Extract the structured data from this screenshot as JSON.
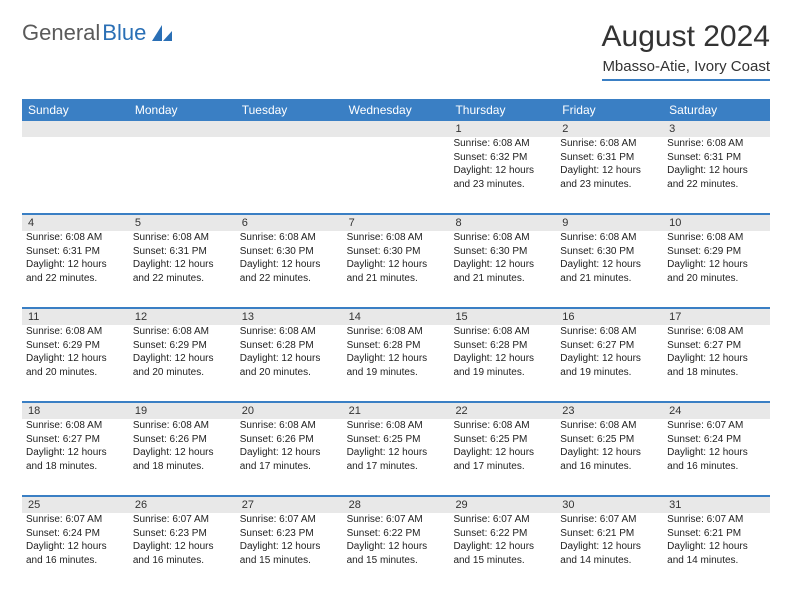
{
  "logo": {
    "text1": "General",
    "text2": "Blue"
  },
  "header": {
    "title": "August 2024",
    "subtitle": "Mbasso-Atie, Ivory Coast"
  },
  "colors": {
    "header_bar": "#3a7fc4",
    "number_strip": "#e8e8e8",
    "text": "#222222",
    "title_text": "#333333",
    "logo_gray": "#5a5a5a",
    "logo_blue": "#2a6fb5",
    "background": "#ffffff"
  },
  "typography": {
    "title_fontsize": 30,
    "subtitle_fontsize": 15,
    "dayheader_fontsize": 12,
    "daynum_fontsize": 11,
    "body_fontsize": 10
  },
  "day_names": [
    "Sunday",
    "Monday",
    "Tuesday",
    "Wednesday",
    "Thursday",
    "Friday",
    "Saturday"
  ],
  "weeks": [
    {
      "numbers": [
        "",
        "",
        "",
        "",
        "1",
        "2",
        "3"
      ],
      "cells": [
        null,
        null,
        null,
        null,
        {
          "sunrise": "Sunrise: 6:08 AM",
          "sunset": "Sunset: 6:32 PM",
          "daylight": "Daylight: 12 hours and 23 minutes."
        },
        {
          "sunrise": "Sunrise: 6:08 AM",
          "sunset": "Sunset: 6:31 PM",
          "daylight": "Daylight: 12 hours and 23 minutes."
        },
        {
          "sunrise": "Sunrise: 6:08 AM",
          "sunset": "Sunset: 6:31 PM",
          "daylight": "Daylight: 12 hours and 22 minutes."
        }
      ]
    },
    {
      "numbers": [
        "4",
        "5",
        "6",
        "7",
        "8",
        "9",
        "10"
      ],
      "cells": [
        {
          "sunrise": "Sunrise: 6:08 AM",
          "sunset": "Sunset: 6:31 PM",
          "daylight": "Daylight: 12 hours and 22 minutes."
        },
        {
          "sunrise": "Sunrise: 6:08 AM",
          "sunset": "Sunset: 6:31 PM",
          "daylight": "Daylight: 12 hours and 22 minutes."
        },
        {
          "sunrise": "Sunrise: 6:08 AM",
          "sunset": "Sunset: 6:30 PM",
          "daylight": "Daylight: 12 hours and 22 minutes."
        },
        {
          "sunrise": "Sunrise: 6:08 AM",
          "sunset": "Sunset: 6:30 PM",
          "daylight": "Daylight: 12 hours and 21 minutes."
        },
        {
          "sunrise": "Sunrise: 6:08 AM",
          "sunset": "Sunset: 6:30 PM",
          "daylight": "Daylight: 12 hours and 21 minutes."
        },
        {
          "sunrise": "Sunrise: 6:08 AM",
          "sunset": "Sunset: 6:30 PM",
          "daylight": "Daylight: 12 hours and 21 minutes."
        },
        {
          "sunrise": "Sunrise: 6:08 AM",
          "sunset": "Sunset: 6:29 PM",
          "daylight": "Daylight: 12 hours and 20 minutes."
        }
      ]
    },
    {
      "numbers": [
        "11",
        "12",
        "13",
        "14",
        "15",
        "16",
        "17"
      ],
      "cells": [
        {
          "sunrise": "Sunrise: 6:08 AM",
          "sunset": "Sunset: 6:29 PM",
          "daylight": "Daylight: 12 hours and 20 minutes."
        },
        {
          "sunrise": "Sunrise: 6:08 AM",
          "sunset": "Sunset: 6:29 PM",
          "daylight": "Daylight: 12 hours and 20 minutes."
        },
        {
          "sunrise": "Sunrise: 6:08 AM",
          "sunset": "Sunset: 6:28 PM",
          "daylight": "Daylight: 12 hours and 20 minutes."
        },
        {
          "sunrise": "Sunrise: 6:08 AM",
          "sunset": "Sunset: 6:28 PM",
          "daylight": "Daylight: 12 hours and 19 minutes."
        },
        {
          "sunrise": "Sunrise: 6:08 AM",
          "sunset": "Sunset: 6:28 PM",
          "daylight": "Daylight: 12 hours and 19 minutes."
        },
        {
          "sunrise": "Sunrise: 6:08 AM",
          "sunset": "Sunset: 6:27 PM",
          "daylight": "Daylight: 12 hours and 19 minutes."
        },
        {
          "sunrise": "Sunrise: 6:08 AM",
          "sunset": "Sunset: 6:27 PM",
          "daylight": "Daylight: 12 hours and 18 minutes."
        }
      ]
    },
    {
      "numbers": [
        "18",
        "19",
        "20",
        "21",
        "22",
        "23",
        "24"
      ],
      "cells": [
        {
          "sunrise": "Sunrise: 6:08 AM",
          "sunset": "Sunset: 6:27 PM",
          "daylight": "Daylight: 12 hours and 18 minutes."
        },
        {
          "sunrise": "Sunrise: 6:08 AM",
          "sunset": "Sunset: 6:26 PM",
          "daylight": "Daylight: 12 hours and 18 minutes."
        },
        {
          "sunrise": "Sunrise: 6:08 AM",
          "sunset": "Sunset: 6:26 PM",
          "daylight": "Daylight: 12 hours and 17 minutes."
        },
        {
          "sunrise": "Sunrise: 6:08 AM",
          "sunset": "Sunset: 6:25 PM",
          "daylight": "Daylight: 12 hours and 17 minutes."
        },
        {
          "sunrise": "Sunrise: 6:08 AM",
          "sunset": "Sunset: 6:25 PM",
          "daylight": "Daylight: 12 hours and 17 minutes."
        },
        {
          "sunrise": "Sunrise: 6:08 AM",
          "sunset": "Sunset: 6:25 PM",
          "daylight": "Daylight: 12 hours and 16 minutes."
        },
        {
          "sunrise": "Sunrise: 6:07 AM",
          "sunset": "Sunset: 6:24 PM",
          "daylight": "Daylight: 12 hours and 16 minutes."
        }
      ]
    },
    {
      "numbers": [
        "25",
        "26",
        "27",
        "28",
        "29",
        "30",
        "31"
      ],
      "cells": [
        {
          "sunrise": "Sunrise: 6:07 AM",
          "sunset": "Sunset: 6:24 PM",
          "daylight": "Daylight: 12 hours and 16 minutes."
        },
        {
          "sunrise": "Sunrise: 6:07 AM",
          "sunset": "Sunset: 6:23 PM",
          "daylight": "Daylight: 12 hours and 16 minutes."
        },
        {
          "sunrise": "Sunrise: 6:07 AM",
          "sunset": "Sunset: 6:23 PM",
          "daylight": "Daylight: 12 hours and 15 minutes."
        },
        {
          "sunrise": "Sunrise: 6:07 AM",
          "sunset": "Sunset: 6:22 PM",
          "daylight": "Daylight: 12 hours and 15 minutes."
        },
        {
          "sunrise": "Sunrise: 6:07 AM",
          "sunset": "Sunset: 6:22 PM",
          "daylight": "Daylight: 12 hours and 15 minutes."
        },
        {
          "sunrise": "Sunrise: 6:07 AM",
          "sunset": "Sunset: 6:21 PM",
          "daylight": "Daylight: 12 hours and 14 minutes."
        },
        {
          "sunrise": "Sunrise: 6:07 AM",
          "sunset": "Sunset: 6:21 PM",
          "daylight": "Daylight: 12 hours and 14 minutes."
        }
      ]
    }
  ]
}
